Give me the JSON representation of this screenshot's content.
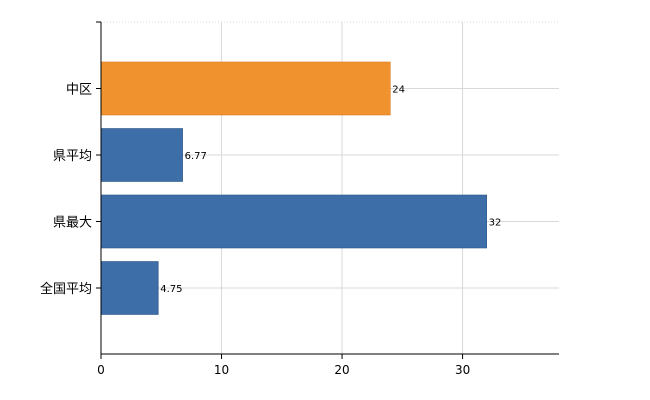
{
  "chart_data": {
    "type": "bar",
    "orientation": "horizontal",
    "categories": [
      "中区",
      "県平均",
      "県最大",
      "全国平均"
    ],
    "values": [
      24,
      6.77,
      32,
      4.75
    ],
    "value_labels": [
      "24",
      "6.77",
      "32",
      "4.75"
    ],
    "bar_colors": [
      "#f0932f",
      "#3d6ea8",
      "#3d6ea8",
      "#3d6ea8"
    ],
    "xlim": [
      0,
      38
    ],
    "xticks": [
      0,
      10,
      20,
      30
    ],
    "xtick_labels": [
      "0",
      "10",
      "20",
      "30"
    ],
    "grid": true,
    "title": "",
    "xlabel": "",
    "ylabel": ""
  },
  "colors": {
    "grid": "#d9d9d9",
    "axis": "#000000",
    "bar_outline": "#2f5685"
  }
}
